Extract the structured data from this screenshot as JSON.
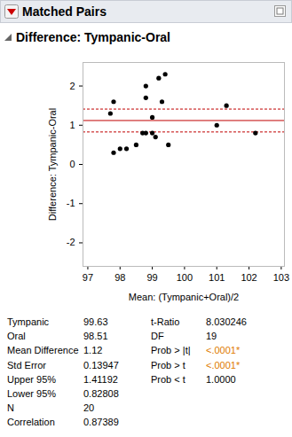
{
  "header": {
    "title": "Matched Pairs"
  },
  "section": {
    "title": "Difference: Tympanic-Oral"
  },
  "chart_data": {
    "type": "scatter",
    "xlabel": "Mean: (Tympanic+Oral)/2",
    "ylabel": "Difference: Tympanic-Oral",
    "x": [
      97.7,
      97.8,
      97.8,
      98.0,
      98.2,
      98.5,
      98.7,
      98.8,
      98.8,
      98.8,
      99.0,
      99.0,
      99.1,
      99.2,
      99.3,
      99.4,
      99.5,
      101.0,
      101.3,
      102.2
    ],
    "values": [
      1.3,
      1.6,
      0.3,
      0.4,
      0.4,
      0.5,
      0.8,
      0.8,
      1.7,
      2.0,
      1.2,
      0.8,
      0.7,
      2.2,
      1.6,
      2.3,
      0.5,
      1.0,
      1.5,
      0.8
    ],
    "color": "#000000",
    "marker": "circle",
    "xlim": [
      96.85,
      103.1
    ],
    "ylim": [
      -2.6,
      2.6
    ],
    "xticks": [
      97,
      98,
      99,
      100,
      101,
      102,
      103
    ],
    "yticks": [
      -2,
      -1,
      0,
      1,
      2
    ],
    "reference_lines": [
      {
        "value": 1.12,
        "color": "#c00000",
        "line_style": "solid"
      },
      {
        "value": 1.41192,
        "color": "#c00000",
        "line_style": "dashed"
      },
      {
        "value": 0.82808,
        "color": "#c00000",
        "line_style": "dashed"
      }
    ]
  },
  "table": {
    "left": [
      {
        "label": "Tympanic",
        "value": "99.63"
      },
      {
        "label": "Oral",
        "value": "98.51"
      },
      {
        "label": "Mean Difference",
        "value": "1.12"
      },
      {
        "label": "Std Error",
        "value": "0.13947"
      },
      {
        "label": "Upper 95%",
        "value": "1.41192"
      },
      {
        "label": "Lower 95%",
        "value": "0.82808"
      },
      {
        "label": "N",
        "value": "20"
      },
      {
        "label": "Correlation",
        "value": "0.87389"
      }
    ],
    "right": [
      {
        "label": "t-Ratio",
        "value": "8.030246"
      },
      {
        "label": "DF",
        "value": "19"
      },
      {
        "label": "Prob > |t|",
        "value": "<.0001*",
        "color": "#e07b00"
      },
      {
        "label": "Prob > t",
        "value": "<.0001*",
        "color": "#e07b00"
      },
      {
        "label": "Prob < t",
        "value": "1.0000"
      }
    ]
  }
}
